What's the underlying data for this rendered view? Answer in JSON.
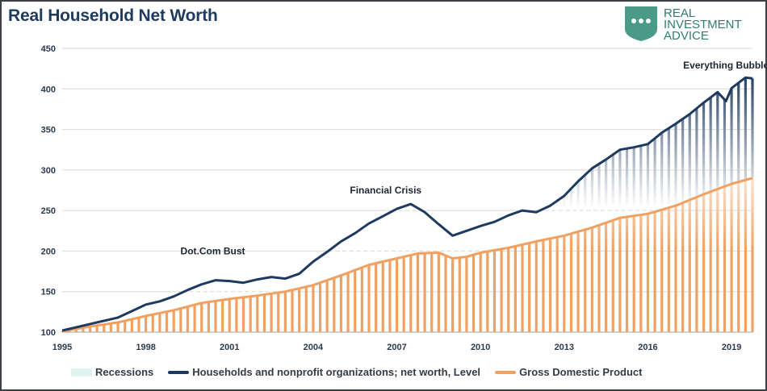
{
  "title": "Real Household Net Worth",
  "brand": {
    "line1": "REAL",
    "line2": "INVESTMENT",
    "line3": "ADVICE",
    "color": "#2e7d6f"
  },
  "colors": {
    "networth": "#1f3a5f",
    "gdp": "#f0a060",
    "recession": "#dff2ee"
  },
  "legend": {
    "recessions": "Recessions",
    "networth": "Households and nonprofit organizations; net worth, Level",
    "gdp": "Gross Domestic Product"
  },
  "chart_data": {
    "type": "area",
    "title": "Real Household Net Worth",
    "xlabel": "",
    "ylabel": "",
    "xlim": [
      1995,
      2019.75
    ],
    "ylim": [
      100,
      450
    ],
    "y_ticks": [
      100,
      150,
      200,
      250,
      300,
      350,
      400,
      450
    ],
    "x_ticks": [
      1995,
      1998,
      2001,
      2004,
      2007,
      2010,
      2013,
      2016,
      2019
    ],
    "grid": "horizontal",
    "legend_position": "bottom",
    "annotations": [
      {
        "text": "Dot.Com Bust",
        "x": 2000.4,
        "y": 196
      },
      {
        "text": "Financial Crisis",
        "x": 2006.6,
        "y": 271
      },
      {
        "text": "Everything Bubble",
        "x": 2018.8,
        "y": 425
      }
    ],
    "series": [
      {
        "name": "Households and nonprofit organizations; net worth, Level",
        "points": [
          [
            1995,
            102
          ],
          [
            1995.5,
            106
          ],
          [
            1996,
            110
          ],
          [
            1996.5,
            114
          ],
          [
            1997,
            118
          ],
          [
            1997.5,
            126
          ],
          [
            1998,
            134
          ],
          [
            1998.5,
            138
          ],
          [
            1999,
            144
          ],
          [
            1999.5,
            152
          ],
          [
            2000,
            159
          ],
          [
            2000.5,
            164
          ],
          [
            2001,
            163
          ],
          [
            2001.5,
            161
          ],
          [
            2002,
            165
          ],
          [
            2002.5,
            168
          ],
          [
            2003,
            166
          ],
          [
            2003.5,
            172
          ],
          [
            2004,
            187
          ],
          [
            2004.5,
            199
          ],
          [
            2005,
            212
          ],
          [
            2005.5,
            222
          ],
          [
            2006,
            234
          ],
          [
            2006.5,
            243
          ],
          [
            2007,
            252
          ],
          [
            2007.5,
            258
          ],
          [
            2008,
            248
          ],
          [
            2008.5,
            233
          ],
          [
            2009,
            219
          ],
          [
            2009.5,
            225
          ],
          [
            2010,
            231
          ],
          [
            2010.5,
            236
          ],
          [
            2011,
            244
          ],
          [
            2011.5,
            250
          ],
          [
            2012,
            248
          ],
          [
            2012.5,
            256
          ],
          [
            2013,
            268
          ],
          [
            2013.5,
            286
          ],
          [
            2014,
            302
          ],
          [
            2014.5,
            313
          ],
          [
            2015,
            325
          ],
          [
            2015.5,
            328
          ],
          [
            2016,
            332
          ],
          [
            2016.5,
            346
          ],
          [
            2017,
            357
          ],
          [
            2017.5,
            369
          ],
          [
            2018,
            383
          ],
          [
            2018.5,
            396
          ],
          [
            2018.8,
            385
          ],
          [
            2019,
            401
          ],
          [
            2019.5,
            414
          ],
          [
            2019.75,
            413
          ]
        ]
      },
      {
        "name": "Gross Domestic Product",
        "points": [
          [
            1995,
            101
          ],
          [
            1996,
            107
          ],
          [
            1997,
            112
          ],
          [
            1998,
            120
          ],
          [
            1999,
            127
          ],
          [
            2000,
            136
          ],
          [
            2001,
            141
          ],
          [
            2002,
            145
          ],
          [
            2003,
            150
          ],
          [
            2004,
            158
          ],
          [
            2005,
            170
          ],
          [
            2006,
            183
          ],
          [
            2007,
            191
          ],
          [
            2007.75,
            197
          ],
          [
            2008.5,
            198
          ],
          [
            2009,
            191
          ],
          [
            2009.5,
            193
          ],
          [
            2010,
            198
          ],
          [
            2011,
            204
          ],
          [
            2012,
            212
          ],
          [
            2013,
            219
          ],
          [
            2014,
            229
          ],
          [
            2015,
            241
          ],
          [
            2016,
            246
          ],
          [
            2017,
            256
          ],
          [
            2018,
            270
          ],
          [
            2019,
            283
          ],
          [
            2019.75,
            290
          ]
        ]
      }
    ]
  }
}
